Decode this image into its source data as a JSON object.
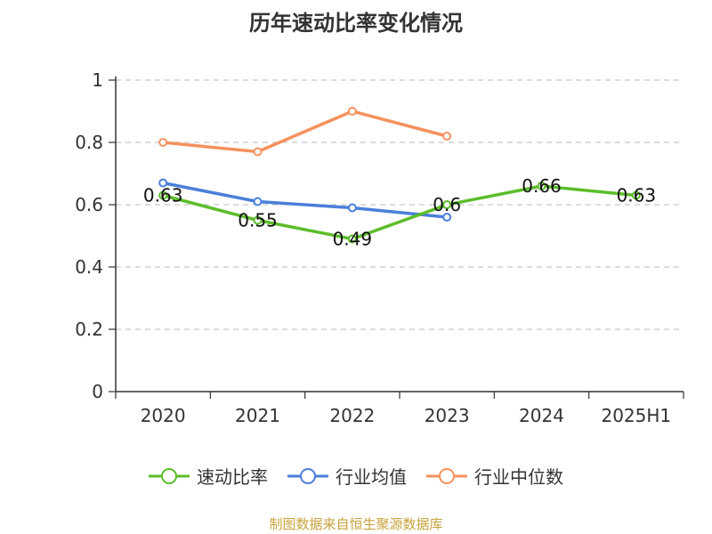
{
  "chart_data": {
    "type": "line",
    "title": "历年速动比率变化情况",
    "categories": [
      "2020",
      "2021",
      "2022",
      "2023",
      "2024",
      "2025H1"
    ],
    "ylim": [
      0,
      1
    ],
    "yticks": [
      "0",
      "0.2",
      "0.4",
      "0.6",
      "0.8",
      "1"
    ],
    "grid": true,
    "legend_position": "bottom",
    "series": [
      {
        "name": "速动比率",
        "color": "#5cbd2a",
        "values": [
          0.63,
          0.55,
          0.49,
          0.6,
          0.66,
          0.63
        ],
        "labels": [
          "0.63",
          "0.55",
          "0.49",
          "0.6",
          "0.66",
          "0.63"
        ]
      },
      {
        "name": "行业均值",
        "color": "#4a7fdb",
        "values": [
          0.67,
          0.61,
          0.59,
          0.56,
          null,
          null
        ]
      },
      {
        "name": "行业中位数",
        "color": "#f5925e",
        "values": [
          0.8,
          0.77,
          0.9,
          0.82,
          null,
          null
        ]
      }
    ]
  },
  "source": "制图数据来自恒生聚源数据库"
}
